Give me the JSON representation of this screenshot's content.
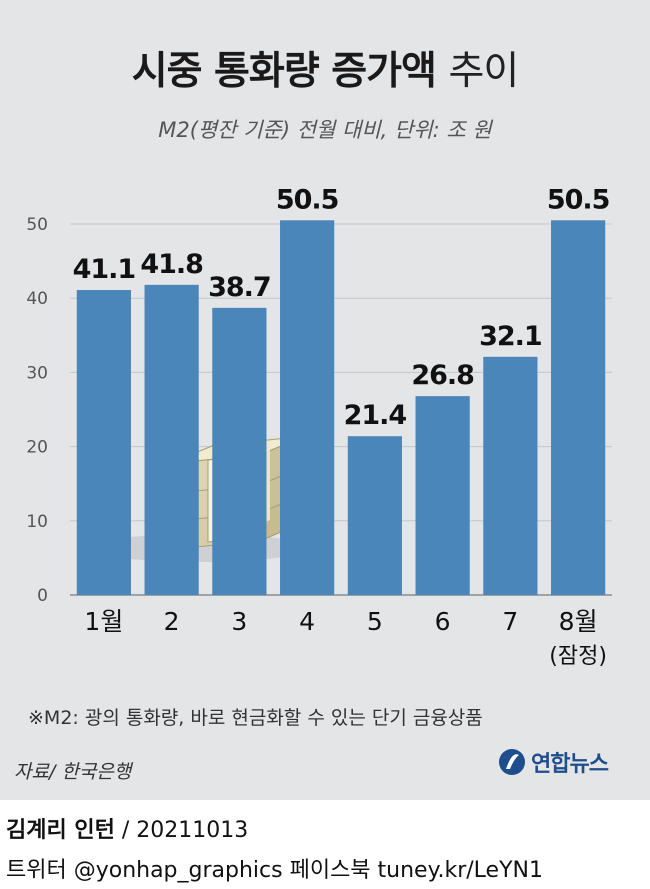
{
  "header": {
    "title_main": "시중 통화량 증가액",
    "title_suffix": "추이",
    "subtitle": "M2(평잔 기준) 전월 대비, 단위: 조 원"
  },
  "chart_data": {
    "type": "bar",
    "categories": [
      "1월",
      "2",
      "3",
      "4",
      "5",
      "6",
      "7",
      "8월"
    ],
    "category_sublabels": [
      "",
      "",
      "",
      "",
      "",
      "",
      "",
      "(잠정)"
    ],
    "values": [
      41.1,
      41.8,
      38.7,
      50.5,
      21.4,
      26.8,
      32.1,
      50.5
    ],
    "value_labels": [
      "41.1",
      "41.8",
      "38.7",
      "50.5",
      "21.4",
      "26.8",
      "32.1",
      "50.5"
    ],
    "yticks": [
      "0",
      "10",
      "20",
      "30",
      "40",
      "50"
    ],
    "ylim": [
      0,
      50
    ],
    "grid": true,
    "bar_color": "#4a86ba"
  },
  "footer": {
    "note": "※M2: 광의 통화량, 바로 현금화할 수 있는 단기 금융상품",
    "source": "자료/ 한국은행",
    "logo_text": "연합뉴스",
    "author_name": "김계리 인턴",
    "author_date": "/ 20211013",
    "social": "트위터 @yonhap_graphics  페이스북 tuney.kr/LeYN1"
  }
}
